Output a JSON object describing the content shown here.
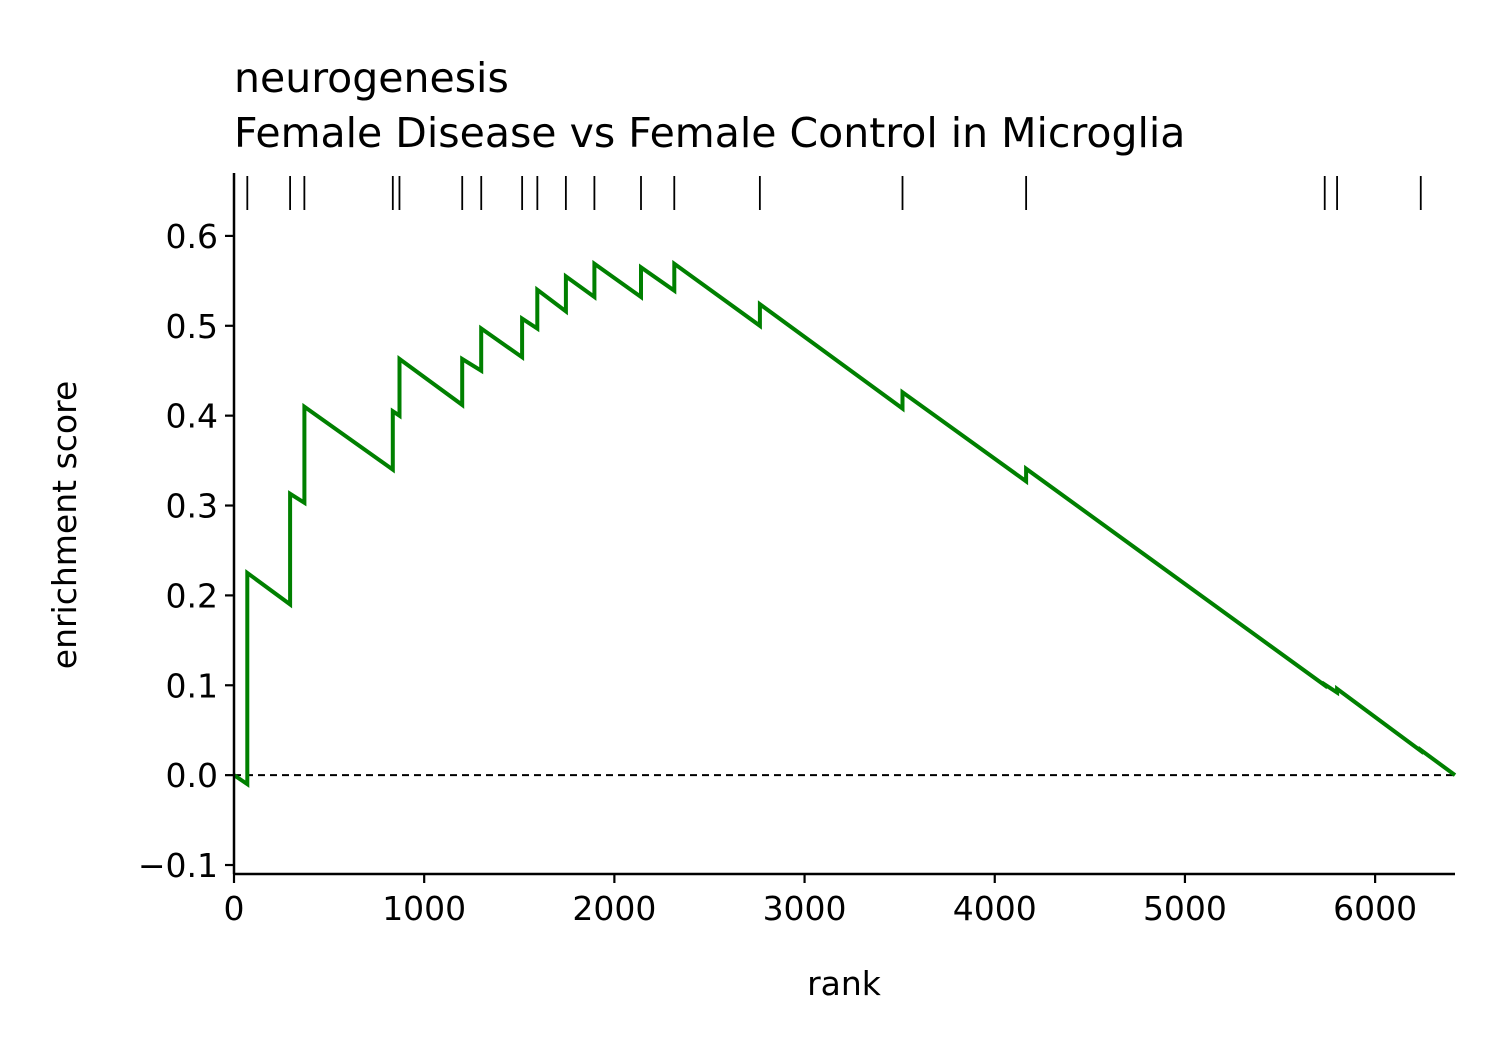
{
  "chart_data": {
    "type": "line",
    "title": "neurogenesis",
    "subtitle": "Female Disease vs Female Control in Microglia",
    "xlabel": "rank",
    "ylabel": "enrichment score",
    "xlim": [
      0,
      6420
    ],
    "ylim": [
      -0.11,
      0.67
    ],
    "x_ticks": [
      0,
      1000,
      2000,
      3000,
      4000,
      5000,
      6000
    ],
    "y_ticks": [
      -0.1,
      0.0,
      0.1,
      0.2,
      0.3,
      0.4,
      0.5,
      0.6
    ],
    "y_tick_labels": [
      "−0.1",
      "0.0",
      "0.1",
      "0.2",
      "0.3",
      "0.4",
      "0.5",
      "0.6"
    ],
    "grid": false,
    "baseline": 0.0,
    "line_color": "#008000",
    "hits": [
      70,
      295,
      370,
      835,
      870,
      1200,
      1300,
      1515,
      1595,
      1745,
      1895,
      2140,
      2315,
      2765,
      3515,
      4165,
      5735,
      5800,
      6240
    ],
    "series": [
      {
        "x": [
          0,
          70,
          70,
          295,
          295,
          370,
          370,
          835,
          835,
          870,
          870,
          1200,
          1200,
          1300,
          1300,
          1515,
          1515,
          1595,
          1595,
          1745,
          1745,
          1895,
          1895,
          2140,
          2140,
          2315,
          2315,
          2765,
          2765,
          3515,
          3515,
          4165,
          4165,
          5735,
          5735,
          5800,
          5800,
          6240,
          6240,
          6420
        ],
        "y": [
          0.0,
          -0.01,
          0.225,
          0.19,
          0.313,
          0.303,
          0.41,
          0.34,
          0.405,
          0.4,
          0.463,
          0.412,
          0.463,
          0.45,
          0.497,
          0.465,
          0.508,
          0.497,
          0.54,
          0.516,
          0.555,
          0.532,
          0.569,
          0.532,
          0.565,
          0.539,
          0.569,
          0.5,
          0.524,
          0.408,
          0.426,
          0.327,
          0.341,
          0.1,
          0.101,
          0.092,
          0.096,
          0.027,
          0.028,
          0.0
        ]
      }
    ]
  }
}
